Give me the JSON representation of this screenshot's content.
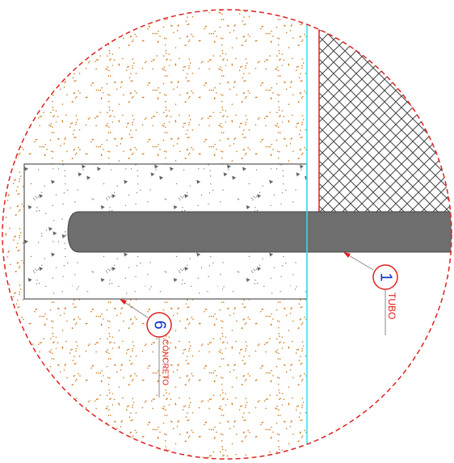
{
  "callouts": [
    {
      "number": "1",
      "label": "TUBO"
    },
    {
      "number": "6",
      "label": "CONCRETO"
    }
  ]
}
